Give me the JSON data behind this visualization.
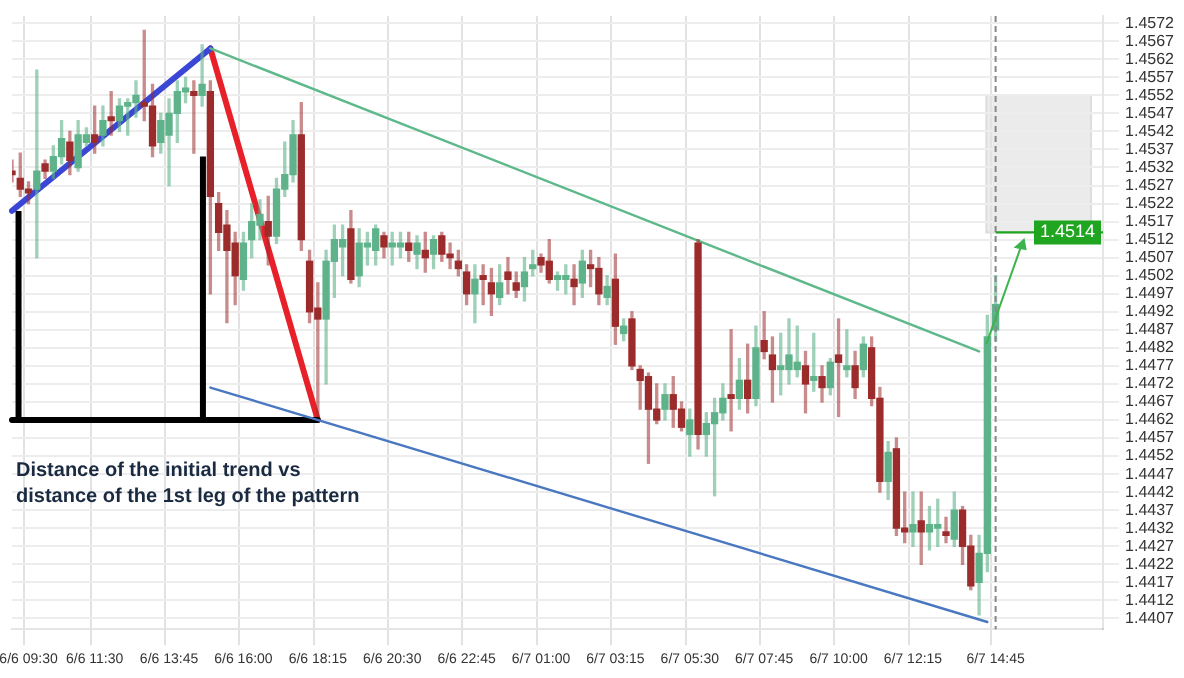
{
  "chart_data": {
    "type": "candlestick",
    "categories": [
      null,
      null,
      "6/6 09:30",
      null,
      null,
      null,
      null,
      null,
      null,
      null,
      "6/6 11:30",
      null,
      null,
      null,
      null,
      null,
      null,
      null,
      null,
      "6/6 13:45",
      null,
      null,
      null,
      null,
      null,
      null,
      null,
      null,
      "6/6 16:00",
      null,
      null,
      null,
      null,
      null,
      null,
      null,
      null,
      "6/6 18:15",
      null,
      null,
      null,
      null,
      null,
      null,
      null,
      null,
      "6/6 20:30",
      null,
      null,
      null,
      null,
      null,
      null,
      null,
      null,
      "6/6 22:45",
      null,
      null,
      null,
      null,
      null,
      null,
      null,
      null,
      "6/7 01:00",
      null,
      null,
      null,
      null,
      null,
      null,
      null,
      null,
      "6/7 03:15",
      null,
      null,
      null,
      null,
      null,
      null,
      null,
      null,
      "6/7 05:30",
      null,
      null,
      null,
      null,
      null,
      null,
      null,
      null,
      "6/7 07:45",
      null,
      null,
      null,
      null,
      null,
      null,
      null,
      null,
      "6/7 10:00",
      null,
      null,
      null,
      null,
      null,
      null,
      null,
      null,
      "6/7 12:15",
      null,
      null,
      null,
      null,
      null,
      null,
      null,
      null,
      null,
      "6/7 14:45",
      null,
      null,
      null,
      null,
      null,
      null,
      null,
      null,
      null,
      null,
      null,
      null,
      null
    ],
    "ohlc": [
      [
        1.4531,
        1.4534,
        1.4528,
        1.453
      ],
      [
        1.4529,
        1.4536,
        1.4524,
        1.4526
      ],
      [
        1.4526,
        1.4528,
        1.4522,
        1.4525
      ],
      [
        1.4526,
        1.4559,
        1.4507,
        1.4531
      ],
      [
        1.4533,
        1.4534,
        1.4529,
        1.4531
      ],
      [
        1.4531,
        1.4538,
        1.4529,
        1.4535
      ],
      [
        1.4535,
        1.4545,
        1.4533,
        1.454
      ],
      [
        1.4539,
        1.4542,
        1.453,
        1.4534
      ],
      [
        1.4532,
        1.4545,
        1.4531,
        1.4541
      ],
      [
        1.4539,
        1.4543,
        1.4538,
        1.4541
      ],
      [
        1.4541,
        1.4549,
        1.4536,
        1.4539
      ],
      [
        1.4541,
        1.4549,
        1.4538,
        1.4545
      ],
      [
        1.4546,
        1.4553,
        1.4541,
        1.4545
      ],
      [
        1.4545,
        1.4551,
        1.4542,
        1.4549
      ],
      [
        1.4549,
        1.4551,
        1.4541,
        1.455
      ],
      [
        1.455,
        1.4556,
        1.4546,
        1.4552
      ],
      [
        1.455,
        1.457,
        1.4545,
        1.4549
      ],
      [
        1.4549,
        1.4555,
        1.4535,
        1.4538
      ],
      [
        1.4539,
        1.4547,
        1.4536,
        1.4545
      ],
      [
        1.4541,
        1.4551,
        1.4527,
        1.4547
      ],
      [
        1.4547,
        1.4556,
        1.4539,
        1.4553
      ],
      [
        1.4553,
        1.4557,
        1.455,
        1.4554
      ],
      [
        1.4553,
        1.4556,
        1.4536,
        1.4552
      ],
      [
        1.4552,
        1.4566,
        1.4549,
        1.4555
      ],
      [
        1.4553,
        1.4556,
        1.4497,
        1.4524
      ],
      [
        1.4522,
        1.4525,
        1.4509,
        1.4514
      ],
      [
        1.4516,
        1.452,
        1.4489,
        1.4509
      ],
      [
        1.4511,
        1.4514,
        1.4494,
        1.4502
      ],
      [
        1.4501,
        1.4514,
        1.4498,
        1.4511
      ],
      [
        1.4512,
        1.4522,
        1.4507,
        1.4517
      ],
      [
        1.4516,
        1.4523,
        1.4512,
        1.4519
      ],
      [
        1.4517,
        1.4524,
        1.4505,
        1.4513
      ],
      [
        1.4513,
        1.4529,
        1.4511,
        1.4526
      ],
      [
        1.4526,
        1.4539,
        1.4524,
        1.453
      ],
      [
        1.453,
        1.4545,
        1.4528,
        1.4541
      ],
      [
        1.4541,
        1.455,
        1.4509,
        1.4512
      ],
      [
        1.4506,
        1.4509,
        1.4489,
        1.4492
      ],
      [
        1.4493,
        1.45,
        1.4463,
        1.449
      ],
      [
        1.449,
        1.4509,
        1.4472,
        1.4506
      ],
      [
        1.4506,
        1.4516,
        1.4496,
        1.4512
      ],
      [
        1.451,
        1.4516,
        1.4502,
        1.4512
      ],
      [
        1.4515,
        1.452,
        1.45,
        1.4501
      ],
      [
        1.4502,
        1.4515,
        1.4499,
        1.4511
      ],
      [
        1.451,
        1.4514,
        1.4505,
        1.4511
      ],
      [
        1.4509,
        1.4516,
        1.4505,
        1.4515
      ],
      [
        1.4513,
        1.4514,
        1.4507,
        1.451
      ],
      [
        1.451,
        1.4514,
        1.4505,
        1.4511
      ],
      [
        1.451,
        1.4514,
        1.4507,
        1.4511
      ],
      [
        1.4511,
        1.4514,
        1.4506,
        1.4509
      ],
      [
        1.4508,
        1.4513,
        1.4504,
        1.4511
      ],
      [
        1.4509,
        1.4514,
        1.4503,
        1.4507
      ],
      [
        1.4508,
        1.4513,
        1.4504,
        1.4512
      ],
      [
        1.4513,
        1.4514,
        1.4506,
        1.4508
      ],
      [
        1.4508,
        1.4511,
        1.4504,
        1.4507
      ],
      [
        1.4506,
        1.4509,
        1.4502,
        1.4504
      ],
      [
        1.4503,
        1.4505,
        1.4494,
        1.4497
      ],
      [
        1.4497,
        1.4505,
        1.4489,
        1.4501
      ],
      [
        1.4502,
        1.4505,
        1.4494,
        1.4501
      ],
      [
        1.45,
        1.4504,
        1.4491,
        1.4497
      ],
      [
        1.4496,
        1.4505,
        1.4494,
        1.45
      ],
      [
        1.4503,
        1.4507,
        1.4497,
        1.4501
      ],
      [
        1.45,
        1.4503,
        1.4496,
        1.4498
      ],
      [
        1.4499,
        1.4507,
        1.4495,
        1.4503
      ],
      [
        1.4504,
        1.4509,
        1.4502,
        1.4505
      ],
      [
        1.4507,
        1.4508,
        1.4503,
        1.4505
      ],
      [
        1.4506,
        1.4512,
        1.45,
        1.4501
      ],
      [
        1.4501,
        1.4503,
        1.4498,
        1.4502
      ],
      [
        1.4501,
        1.4505,
        1.4497,
        1.4502
      ],
      [
        1.4501,
        1.4505,
        1.4494,
        1.4499
      ],
      [
        1.45,
        1.4509,
        1.4496,
        1.4506
      ],
      [
        1.4505,
        1.4509,
        1.4499,
        1.4504
      ],
      [
        1.4504,
        1.4507,
        1.4494,
        1.4497
      ],
      [
        1.4496,
        1.4502,
        1.4494,
        1.4499
      ],
      [
        1.4501,
        1.4508,
        1.4483,
        1.4488
      ],
      [
        1.4486,
        1.449,
        1.4484,
        1.4488
      ],
      [
        1.449,
        1.4492,
        1.4476,
        1.4477
      ],
      [
        1.4476,
        1.4477,
        1.4465,
        1.4473
      ],
      [
        1.4474,
        1.4475,
        1.445,
        1.4465
      ],
      [
        1.4465,
        1.4472,
        1.4461,
        1.4462
      ],
      [
        1.4465,
        1.4472,
        1.4462,
        1.4469
      ],
      [
        1.4469,
        1.4474,
        1.446,
        1.4465
      ],
      [
        1.4465,
        1.4467,
        1.4459,
        1.446
      ],
      [
        1.4458,
        1.4465,
        1.4452,
        1.4462
      ],
      [
        1.4511,
        1.4512,
        1.4454,
        1.4458
      ],
      [
        1.4458,
        1.4464,
        1.4452,
        1.4461
      ],
      [
        1.4461,
        1.4468,
        1.4441,
        1.4464
      ],
      [
        1.4464,
        1.4472,
        1.4462,
        1.4468
      ],
      [
        1.4469,
        1.4487,
        1.4459,
        1.4468
      ],
      [
        1.4468,
        1.4479,
        1.4465,
        1.4473
      ],
      [
        1.4473,
        1.4483,
        1.4464,
        1.4468
      ],
      [
        1.4468,
        1.4488,
        1.4466,
        1.4482
      ],
      [
        1.4484,
        1.4492,
        1.4479,
        1.4481
      ],
      [
        1.448,
        1.4485,
        1.4467,
        1.4476
      ],
      [
        1.4476,
        1.4486,
        1.4469,
        1.4477
      ],
      [
        1.4476,
        1.449,
        1.4472,
        1.448
      ],
      [
        1.4476,
        1.4488,
        1.4474,
        1.4478
      ],
      [
        1.4477,
        1.4481,
        1.4464,
        1.4472
      ],
      [
        1.4473,
        1.4486,
        1.447,
        1.4474
      ],
      [
        1.4474,
        1.4477,
        1.4467,
        1.4471
      ],
      [
        1.4471,
        1.4479,
        1.4469,
        1.4478
      ],
      [
        1.448,
        1.449,
        1.4463,
        1.4478
      ],
      [
        1.4476,
        1.4487,
        1.4474,
        1.4477
      ],
      [
        1.4477,
        1.4481,
        1.4468,
        1.4471
      ],
      [
        1.4476,
        1.4485,
        1.4474,
        1.4483
      ],
      [
        1.4482,
        1.4485,
        1.4466,
        1.4468
      ],
      [
        1.4468,
        1.4471,
        1.4442,
        1.4445
      ],
      [
        1.4445,
        1.4456,
        1.444,
        1.4453
      ],
      [
        1.4454,
        1.4457,
        1.443,
        1.4432
      ],
      [
        1.4432,
        1.4442,
        1.4428,
        1.4431
      ],
      [
        1.4431,
        1.4442,
        1.4427,
        1.4433
      ],
      [
        1.4434,
        1.4442,
        1.4422,
        1.4431
      ],
      [
        1.4431,
        1.4438,
        1.4426,
        1.4433
      ],
      [
        1.4432,
        1.444,
        1.4427,
        1.4433
      ],
      [
        1.4431,
        1.4435,
        1.4428,
        1.443
      ],
      [
        1.4429,
        1.4442,
        1.4427,
        1.4437
      ],
      [
        1.4437,
        1.4438,
        1.4422,
        1.4427
      ],
      [
        1.4427,
        1.443,
        1.4415,
        1.4416
      ],
      [
        1.4417,
        1.443,
        1.4408,
        1.4425
      ],
      [
        1.4425,
        1.4491,
        1.442,
        1.4485
      ],
      [
        1.4487,
        1.4502,
        1.4484,
        1.4494
      ],
      null,
      null,
      null,
      null,
      null,
      null,
      null,
      null,
      null,
      null,
      null,
      null,
      null
    ],
    "series": [
      {
        "type": "line",
        "color": "#4a78c0",
        "values": [
          null,
          null,
          null,
          null,
          null,
          null,
          null,
          null,
          null,
          null,
          null,
          null,
          null,
          null,
          null,
          null,
          null,
          null,
          null,
          null,
          null,
          null,
          null,
          null,
          1.4471,
          null,
          null,
          null,
          null,
          null,
          null,
          null,
          null,
          null,
          null,
          null,
          null,
          null,
          null,
          null,
          null,
          null,
          null,
          null,
          null,
          null,
          null,
          null,
          null,
          null,
          null,
          null,
          null,
          null,
          null,
          null,
          null,
          null,
          null,
          null,
          null,
          null,
          null,
          null,
          null,
          null,
          null,
          null,
          null,
          null,
          null,
          null,
          null,
          null,
          null,
          null,
          null,
          null,
          null,
          null,
          null,
          null,
          null,
          null,
          null,
          null,
          null,
          null,
          null,
          null,
          null,
          null,
          null,
          null,
          null,
          null,
          null,
          null,
          null,
          null,
          null,
          null,
          null,
          null,
          null,
          null,
          null,
          null,
          null,
          null,
          null,
          null,
          null,
          null,
          null,
          null,
          null,
          null,
          1.4406,
          null,
          null,
          null,
          null,
          null,
          null,
          null,
          null,
          null,
          null,
          null,
          null,
          null,
          null
        ]
      },
      {
        "type": "line",
        "color": "#5db88a",
        "values": [
          null,
          null,
          null,
          null,
          null,
          null,
          null,
          null,
          null,
          null,
          null,
          null,
          null,
          null,
          null,
          null,
          null,
          null,
          null,
          null,
          null,
          null,
          null,
          null,
          1.4565,
          null,
          null,
          null,
          null,
          null,
          null,
          null,
          null,
          null,
          null,
          null,
          null,
          null,
          null,
          null,
          null,
          null,
          null,
          null,
          null,
          null,
          null,
          null,
          null,
          null,
          null,
          null,
          null,
          null,
          null,
          null,
          null,
          null,
          null,
          null,
          null,
          null,
          null,
          null,
          null,
          null,
          null,
          null,
          null,
          null,
          null,
          null,
          null,
          null,
          null,
          null,
          null,
          null,
          null,
          null,
          null,
          null,
          null,
          null,
          null,
          null,
          null,
          null,
          null,
          null,
          null,
          null,
          null,
          null,
          null,
          null,
          null,
          null,
          null,
          null,
          null,
          null,
          null,
          null,
          null,
          null,
          null,
          null,
          null,
          null,
          null,
          null,
          null,
          null,
          null,
          null,
          null,
          1.4481,
          null,
          null,
          null,
          null,
          null,
          null,
          null,
          null,
          null,
          null,
          null,
          null,
          null,
          null,
          null
        ]
      },
      {
        "type": "line",
        "color": "#000000",
        "values": [
          1.4462,
          null,
          null,
          null,
          null,
          null,
          null,
          null,
          null,
          null,
          null,
          null,
          null,
          null,
          null,
          null,
          null,
          null,
          null,
          null,
          null,
          null,
          null,
          null,
          null,
          null,
          null,
          null,
          null,
          null,
          null,
          null,
          null,
          null,
          null,
          null,
          null,
          1.4462,
          null,
          null,
          null,
          null,
          null,
          null,
          null,
          null,
          null,
          null,
          null,
          null,
          null,
          null,
          null,
          null,
          null,
          null,
          null,
          null,
          null,
          null,
          null,
          null,
          null,
          null,
          null,
          null,
          null,
          null,
          null,
          null,
          null,
          null,
          null,
          null,
          null,
          null,
          null,
          null,
          null,
          null,
          null,
          null,
          null,
          null,
          null,
          null,
          null,
          null,
          null,
          null,
          null,
          null,
          null,
          null,
          null,
          null,
          null,
          null,
          null,
          null,
          null,
          null,
          null,
          null,
          null,
          null,
          null,
          null,
          null,
          null,
          null,
          null,
          null,
          null,
          null,
          null,
          null,
          null,
          null,
          null,
          null,
          null,
          null,
          null,
          null,
          null,
          null,
          null,
          null,
          null,
          null,
          null,
          null
        ]
      },
      {
        "type": "line",
        "color": "#3a46d6",
        "values": [
          1.452,
          null,
          null,
          null,
          null,
          null,
          null,
          null,
          null,
          null,
          null,
          null,
          null,
          null,
          null,
          null,
          null,
          null,
          null,
          null,
          null,
          null,
          null,
          null,
          1.4565,
          null,
          null,
          null,
          null,
          null,
          null,
          null,
          null,
          null,
          null,
          null,
          null,
          null,
          null,
          null,
          null,
          null,
          null,
          null,
          null,
          null,
          null,
          null,
          null,
          null,
          null,
          null,
          null,
          null,
          null,
          null,
          null,
          null,
          null,
          null,
          null,
          null,
          null,
          null,
          null,
          null,
          null,
          null,
          null,
          null,
          null,
          null,
          null,
          null,
          null,
          null,
          null,
          null,
          null,
          null,
          null,
          null,
          null,
          null,
          null,
          null,
          null,
          null,
          null,
          null,
          null,
          null,
          null,
          null,
          null,
          null,
          null,
          null,
          null,
          null,
          null,
          null,
          null,
          null,
          null,
          null,
          null,
          null,
          null,
          null,
          null,
          null,
          null,
          null,
          null,
          null,
          null,
          null,
          null,
          null,
          null,
          null,
          null,
          null,
          null,
          null,
          null,
          null,
          null,
          null,
          null,
          null,
          null
        ]
      },
      {
        "type": "line",
        "color": "#e8202a",
        "values": [
          null,
          null,
          null,
          null,
          null,
          null,
          null,
          null,
          null,
          null,
          null,
          null,
          null,
          null,
          null,
          null,
          null,
          null,
          null,
          null,
          null,
          null,
          null,
          null,
          1.4565,
          null,
          null,
          null,
          null,
          null,
          null,
          null,
          null,
          null,
          null,
          null,
          null,
          1.4462,
          null,
          null,
          null,
          null,
          null,
          null,
          null,
          null,
          null,
          null,
          null,
          null,
          null,
          null,
          null,
          null,
          null,
          null,
          null,
          null,
          null,
          null,
          null,
          null,
          null,
          null,
          null,
          null,
          null,
          null,
          null,
          null,
          null,
          null,
          null,
          null,
          null,
          null,
          null,
          null,
          null,
          null,
          null,
          null,
          null,
          null,
          null,
          null,
          null,
          null,
          null,
          null,
          null,
          null,
          null,
          null,
          null,
          null,
          null,
          null,
          null,
          null,
          null,
          null,
          null,
          null,
          null,
          null,
          null,
          null,
          null,
          null,
          null,
          null,
          null,
          null,
          null,
          null,
          null,
          null,
          null,
          null,
          null,
          null,
          null,
          null,
          null,
          null,
          null,
          null,
          null,
          null,
          null,
          null,
          null
        ]
      }
    ],
    "ylim": [
      1.4404,
      1.4574
    ],
    "yticks": [
      1.4407,
      1.4412,
      1.4417,
      1.4422,
      1.4427,
      1.4432,
      1.4437,
      1.4442,
      1.4447,
      1.4452,
      1.4457,
      1.4462,
      1.4467,
      1.4472,
      1.4477,
      1.4482,
      1.4487,
      1.4492,
      1.4497,
      1.4502,
      1.4507,
      1.4512,
      1.4517,
      1.4522,
      1.4527,
      1.4532,
      1.4537,
      1.4542,
      1.4547,
      1.4552,
      1.4557,
      1.4562,
      1.4567,
      1.4572
    ],
    "grid": true,
    "ref_lines": [
      {
        "axis": "x",
        "value": "6/7 14:45",
        "color": "#888888",
        "line_style": "dashed"
      },
      {
        "axis": "y",
        "value": 1.4514,
        "label": "1.4514",
        "color": "#1fa51f"
      }
    ],
    "annotations": [
      "Distance of the initial trend vs distance of the 1st leg of the pattern"
    ]
  }
}
